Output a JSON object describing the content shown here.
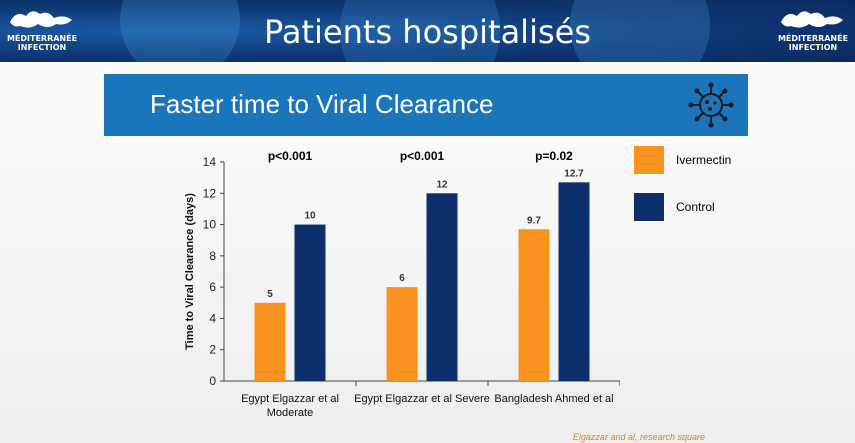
{
  "banner": {
    "title": "Patients hospitalisés",
    "logo_left": {
      "line1": "MÉDITERRANÉE",
      "line2": "INFECTION"
    },
    "logo_right": {
      "line1": "MÉDITERRANÉE",
      "line2": "INFECTION"
    }
  },
  "slide": {
    "title": "Faster time to Viral Clearance",
    "icon": "virus-icon",
    "citation": "Elgazzar and al, research square"
  },
  "colors": {
    "ivermectin": "#f7931e",
    "control": "#0d2f6b",
    "header_blue": "#1b75bb",
    "banner_blue": "#0d3572"
  },
  "chart_data": {
    "type": "bar",
    "categories": [
      [
        "Egypt Elgazzar et al",
        "Moderate"
      ],
      [
        "Egypt Elgazzar et al Severe"
      ],
      [
        "Bangladesh Ahmed et al"
      ]
    ],
    "series": [
      {
        "name": "Ivermectin",
        "values": [
          5,
          6,
          9.7
        ],
        "labels": [
          "5",
          "6",
          "9.7"
        ]
      },
      {
        "name": "Control",
        "values": [
          10,
          12,
          12.7
        ],
        "labels": [
          "10",
          "12",
          "12.7"
        ]
      }
    ],
    "pvalues": [
      "p<0.001",
      "p<0.001",
      "p=0.02"
    ],
    "ylabel": "Time to Viral Clearance (days)",
    "ylim": [
      0,
      14
    ],
    "yticks": [
      "0",
      "2",
      "4",
      "6",
      "8",
      "10",
      "12",
      "14"
    ],
    "grid": false,
    "legend_position": "right"
  }
}
